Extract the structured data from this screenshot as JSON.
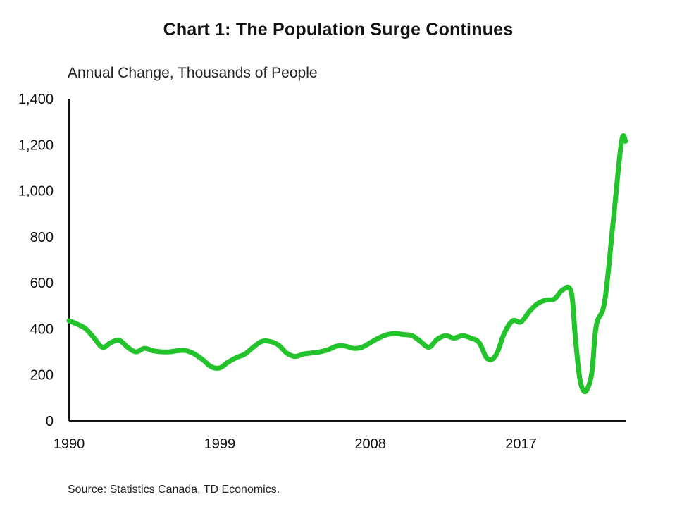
{
  "chart_data": {
    "type": "line",
    "title": "Chart 1: The Population Surge Continues",
    "ylabel": "Annual Change, Thousands of People",
    "xlabel": "",
    "xlim": [
      1990,
      2023.25
    ],
    "ylim": [
      0,
      1400
    ],
    "x_ticks": [
      1990,
      1999,
      2008,
      2017
    ],
    "x_tick_labels": [
      "1990",
      "1999",
      "2008",
      "2017"
    ],
    "y_ticks": [
      0,
      200,
      400,
      600,
      800,
      1000,
      1200,
      1400
    ],
    "y_tick_labels": [
      "0",
      "200",
      "400",
      "600",
      "800",
      "1,000",
      "1,200",
      "1,400"
    ],
    "grid": false,
    "legend": "none",
    "source": "Source: Statistics Canada, TD Economics.",
    "series": [
      {
        "name": "Annual Change",
        "color": "#22c32b",
        "x": [
          1990,
          1990.5,
          1991,
          1991.5,
          1992,
          1992.5,
          1993,
          1993.5,
          1994,
          1994.5,
          1995,
          1995.5,
          1996,
          1996.5,
          1997,
          1997.5,
          1998,
          1998.5,
          1999,
          1999.5,
          2000,
          2000.5,
          2001,
          2001.5,
          2002,
          2002.5,
          2003,
          2003.5,
          2004,
          2004.5,
          2005,
          2005.5,
          2006,
          2006.5,
          2007,
          2007.5,
          2008,
          2008.5,
          2009,
          2009.5,
          2010,
          2010.5,
          2011,
          2011.5,
          2012,
          2012.5,
          2013,
          2013.5,
          2014,
          2014.5,
          2015,
          2015.5,
          2016,
          2016.5,
          2017,
          2017.5,
          2018,
          2018.5,
          2019,
          2019.5,
          2020,
          2020.25,
          2020.5,
          2020.75,
          2021,
          2021.25,
          2021.5,
          2022,
          2022.5,
          2023,
          2023.25
        ],
        "values": [
          435,
          420,
          400,
          360,
          320,
          340,
          350,
          320,
          300,
          315,
          305,
          300,
          300,
          305,
          305,
          290,
          265,
          235,
          230,
          255,
          275,
          290,
          320,
          345,
          345,
          330,
          295,
          280,
          290,
          295,
          300,
          310,
          325,
          325,
          315,
          320,
          340,
          360,
          375,
          380,
          375,
          370,
          345,
          320,
          355,
          370,
          360,
          370,
          360,
          340,
          270,
          285,
          380,
          435,
          430,
          475,
          510,
          525,
          530,
          570,
          560,
          360,
          190,
          130,
          145,
          220,
          415,
          520,
          860,
          1210,
          1215
        ]
      }
    ]
  }
}
